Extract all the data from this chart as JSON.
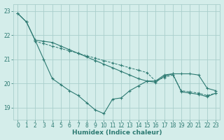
{
  "title": "",
  "xlabel": "Humidex (Indice chaleur)",
  "ylabel": "",
  "xlim": [
    -0.5,
    23.5
  ],
  "ylim": [
    18.5,
    23.3
  ],
  "yticks": [
    19,
    20,
    21,
    22,
    23
  ],
  "xticks": [
    0,
    1,
    2,
    3,
    4,
    5,
    6,
    7,
    8,
    9,
    10,
    11,
    12,
    13,
    14,
    15,
    16,
    17,
    18,
    19,
    20,
    21,
    22,
    23
  ],
  "background_color": "#d4edea",
  "grid_color": "#aacfcc",
  "line_color": "#2d7a72",
  "series": [
    {
      "x": [
        0,
        1,
        2,
        3,
        4,
        5,
        6,
        7,
        8,
        9,
        10,
        11,
        12,
        13,
        14,
        15,
        16,
        17,
        18,
        19,
        20,
        21,
        22,
        23
      ],
      "y": [
        22.9,
        22.55,
        21.8,
        21.75,
        21.7,
        21.55,
        21.4,
        21.25,
        21.1,
        20.95,
        20.8,
        20.65,
        20.5,
        20.35,
        20.2,
        20.1,
        20.05,
        20.3,
        20.4,
        20.4,
        20.4,
        20.35,
        19.8,
        19.7
      ]
    },
    {
      "x": [
        2,
        3,
        4,
        5,
        6,
        7,
        8,
        9,
        10,
        11,
        12,
        13,
        14,
        15,
        16,
        17,
        18,
        19,
        20,
        21,
        22,
        23
      ],
      "y": [
        21.75,
        21.65,
        21.55,
        21.45,
        21.35,
        21.25,
        21.15,
        21.05,
        20.95,
        20.85,
        20.75,
        20.65,
        20.55,
        20.45,
        20.1,
        20.25,
        20.35,
        19.7,
        19.65,
        19.6,
        19.5,
        19.6
      ]
    },
    {
      "x": [
        0,
        1,
        2,
        3,
        4,
        5,
        6,
        7,
        8,
        9,
        10,
        11,
        12,
        13,
        14,
        15,
        16,
        17,
        18,
        19,
        20,
        21,
        22,
        23
      ],
      "y": [
        22.9,
        22.55,
        21.8,
        21.0,
        20.2,
        19.95,
        19.7,
        19.5,
        19.2,
        18.9,
        18.75,
        19.35,
        19.4,
        19.7,
        19.9,
        20.1,
        20.1,
        20.35,
        20.4,
        19.65,
        19.6,
        19.55,
        19.45,
        19.6
      ]
    }
  ]
}
